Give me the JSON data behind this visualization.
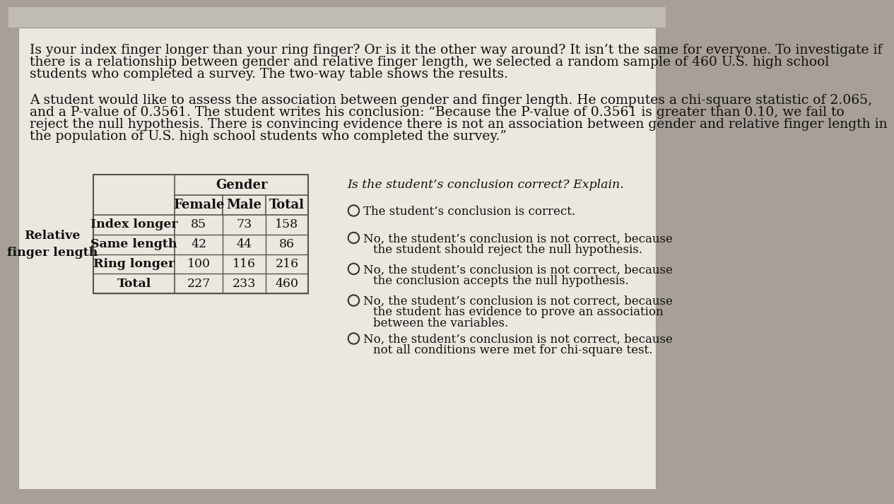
{
  "bg_outer": "#a8a098",
  "bg_top_strip": "#c8ccc8",
  "paper_color": "#ece8e0",
  "paper_border": "#aaaaaa",
  "intro_text_line1": "Is your index finger longer than your ring finger? Or is it the other way around? It isn’t the same for everyone. To investigate if",
  "intro_text_line2": "there is a relationship between gender and relative finger length, we selected a random sample of 460 U.S. high school",
  "intro_text_line3": "students who completed a survey. The two-way table shows the results.",
  "para2_line1": "A student would like to assess the association between gender and finger length. He computes a chi-square statistic of 2.065,",
  "para2_line2": "and a P-value of 0.3561. The student writes his conclusion: “Because the P-value of 0.3561 is greater than 0.10, we fail to",
  "para2_line3": "reject the null hypothesis. There is convincing evidence there is not an association between gender and relative finger length in",
  "para2_line4": "the population of U.S. high school students who completed the survey.”",
  "table_header_gender": "Gender",
  "table_col_headers": [
    "Female",
    "Male",
    "Total"
  ],
  "table_row_label_group": "Relative\nfinger length",
  "table_rows": [
    [
      "Index longer",
      "85",
      "73",
      "158"
    ],
    [
      "Same length",
      "42",
      "44",
      "86"
    ],
    [
      "Ring longer",
      "100",
      "116",
      "216"
    ],
    [
      "Total",
      "227",
      "233",
      "460"
    ]
  ],
  "question_text": "Is the student’s conclusion correct? Explain.",
  "options": [
    [
      "The student’s conclusion is correct.",
      ""
    ],
    [
      "No, the student’s conclusion is not correct, because",
      "the student should reject the null hypothesis."
    ],
    [
      "No, the student’s conclusion is not correct, because",
      "the conclusion accepts the null hypothesis."
    ],
    [
      "No, the student’s conclusion is not correct, because",
      "the student has evidence to prove an association",
      "between the variables."
    ],
    [
      "No, the student’s conclusion is not correct, because",
      "not all conditions were met for chi-square test."
    ]
  ],
  "font_size_body": 13.5,
  "font_size_table_header": 13,
  "font_size_table_data": 12.5,
  "font_size_question": 12.5,
  "font_size_options": 12
}
